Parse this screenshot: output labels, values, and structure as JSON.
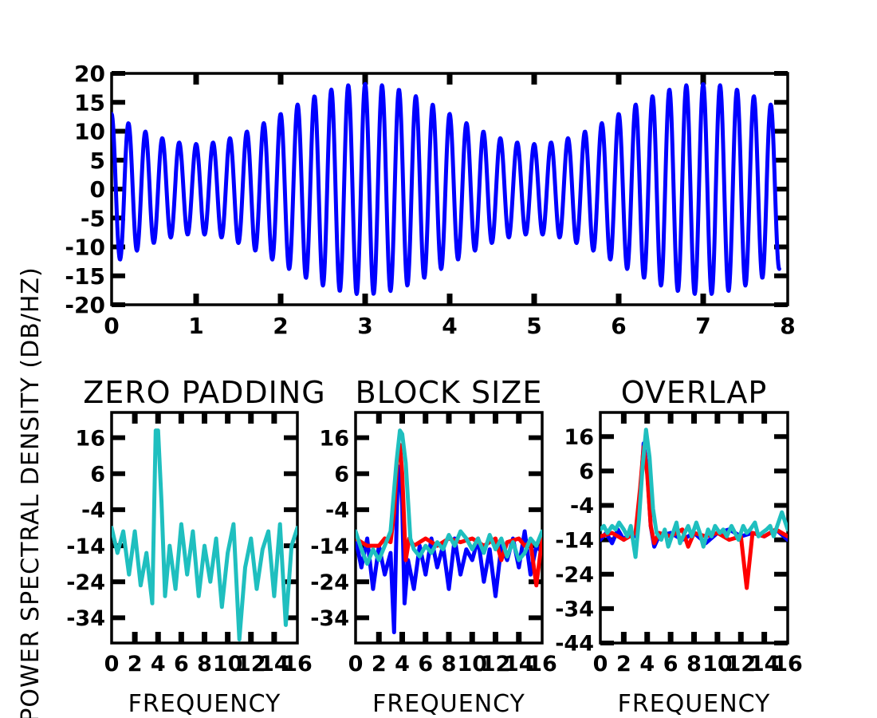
{
  "colors": {
    "blue": "#0000ff",
    "red": "#ff0000",
    "teal": "#1fbfbf",
    "axis": "#000000"
  },
  "ylabel": "POWER SPECTRAL DENSITY (DB/HZ)",
  "chart_data": [
    {
      "type": "line",
      "panel": "signal",
      "xlim": [
        0,
        8
      ],
      "ylim": [
        -20,
        20
      ],
      "x_ticks": [
        0,
        1,
        2,
        3,
        4,
        5,
        6,
        7,
        8
      ],
      "y_ticks": [
        20,
        15,
        10,
        5,
        0,
        -5,
        -10,
        -15,
        -20
      ],
      "series": [
        {
          "color": "blue",
          "signal": {
            "t_start": 0,
            "t_end": 7.9,
            "amplitude": 13,
            "modulation": 0.4,
            "cycles_per_unit": 5,
            "beat_period": 4
          }
        }
      ]
    },
    {
      "type": "line",
      "panel": "zero-padding",
      "title": "ZERO PADDING",
      "xlabel": "FREQUENCY",
      "xlim": [
        0,
        16
      ],
      "ylim": [
        -41,
        23
      ],
      "x_ticks": [
        "0",
        "2",
        "4",
        "6",
        "8",
        "10",
        "12",
        "14",
        "16"
      ],
      "y_ticks": [
        16,
        6,
        -4,
        -14,
        -24,
        -34
      ],
      "series": [
        {
          "color": "teal",
          "x": [
            0,
            0.5,
            1,
            1.5,
            2,
            2.5,
            3,
            3.5,
            3.8,
            4,
            4.3,
            4.6,
            5,
            5.5,
            6,
            6.5,
            7,
            7.5,
            8,
            8.5,
            9,
            9.5,
            10,
            10.5,
            11,
            11.5,
            12,
            12.5,
            13,
            13.5,
            14,
            14.5,
            15,
            15.5,
            16
          ],
          "y": [
            -9,
            -16,
            -10,
            -22,
            -10,
            -25,
            -16,
            -30,
            18,
            18,
            -2,
            -28,
            -14,
            -26,
            -8,
            -22,
            -10,
            -28,
            -14,
            -24,
            -12,
            -31,
            -16,
            -8,
            -40,
            -20,
            -12,
            -26,
            -15,
            -10,
            -28,
            -8,
            -36,
            -14,
            -9
          ]
        }
      ]
    },
    {
      "type": "line",
      "panel": "block-size",
      "title": "BLOCK SIZE",
      "xlabel": "FREQUENCY",
      "xlim": [
        0,
        16
      ],
      "ylim": [
        -41,
        23
      ],
      "x_ticks": [
        "0",
        "2",
        "4",
        "6",
        "8",
        "10",
        "12",
        "14",
        "16"
      ],
      "y_ticks": [
        16,
        6,
        -4,
        -14,
        -24,
        -34
      ],
      "series": [
        {
          "color": "blue",
          "x": [
            0,
            0.5,
            1,
            1.5,
            2,
            2.5,
            3,
            3.3,
            3.6,
            3.8,
            4,
            4.2,
            4.5,
            5,
            5.5,
            6,
            6.5,
            7,
            7.5,
            8,
            8.5,
            9,
            9.5,
            10,
            10.5,
            11,
            11.5,
            12,
            12.5,
            13,
            13.5,
            14,
            14.5,
            15,
            15.5,
            16
          ],
          "y": [
            -12,
            -20,
            -12,
            -26,
            -14,
            -22,
            -16,
            -38,
            3,
            8,
            -3,
            -30,
            -18,
            -26,
            -14,
            -22,
            -12,
            -20,
            -14,
            -26,
            -12,
            -22,
            -15,
            -18,
            -12,
            -24,
            -15,
            -28,
            -14,
            -18,
            -12,
            -20,
            -10,
            -22,
            -14,
            -16
          ]
        },
        {
          "color": "red",
          "x": [
            0,
            1,
            2,
            2.5,
            3,
            3.3,
            3.6,
            3.8,
            4,
            4.3,
            4.6,
            5,
            6,
            7,
            8,
            9,
            10,
            11,
            12,
            12.5,
            13,
            14,
            14.5,
            15,
            15.5,
            16
          ],
          "y": [
            -12,
            -14,
            -14,
            -12,
            -13,
            -5,
            11,
            14,
            6,
            -18,
            -12,
            -14,
            -12,
            -14,
            -12,
            -13,
            -12,
            -14,
            -12,
            -18,
            -13,
            -12,
            -14,
            -13,
            -25,
            -12
          ]
        },
        {
          "color": "teal",
          "x": [
            0,
            0.5,
            1,
            1.5,
            2,
            2.5,
            3,
            3.5,
            3.8,
            4,
            4.3,
            4.7,
            5,
            5.5,
            6,
            6.5,
            7,
            7.5,
            8,
            8.5,
            9,
            9.5,
            10,
            10.5,
            11,
            11.5,
            12,
            12.5,
            13,
            13.5,
            14,
            14.5,
            15,
            15.5,
            16
          ],
          "y": [
            -10,
            -15,
            -19,
            -15,
            -18,
            -14,
            -10,
            9,
            18,
            17,
            9,
            -12,
            -15,
            -17,
            -14,
            -16,
            -13,
            -15,
            -11,
            -14,
            -10,
            -12,
            -15,
            -12,
            -16,
            -11,
            -15,
            -12,
            -17,
            -13,
            -18,
            -16,
            -12,
            -14,
            -10
          ]
        }
      ]
    },
    {
      "type": "line",
      "panel": "overlap",
      "title": "OVERLAP",
      "xlabel": "FREQUENCY",
      "xlim": [
        0,
        16
      ],
      "ylim": [
        -44,
        23
      ],
      "x_ticks": [
        "0",
        "2",
        "4",
        "6",
        "8",
        "10",
        "12",
        "14",
        "16"
      ],
      "y_ticks": [
        16,
        6,
        -4,
        -14,
        -24,
        -34,
        -44
      ],
      "series": [
        {
          "color": "blue",
          "x": [
            0,
            0.5,
            1,
            1.5,
            2,
            2.5,
            3,
            3.4,
            3.7,
            4,
            4.3,
            4.6,
            5,
            6,
            7,
            8,
            9,
            10,
            11,
            12,
            13,
            14,
            15,
            16
          ],
          "y": [
            -14,
            -12,
            -15,
            -11,
            -14,
            -12,
            -13,
            -2,
            14,
            6,
            -10,
            -16,
            -13,
            -12,
            -14,
            -12,
            -15,
            -12,
            -11,
            -13,
            -12,
            -13,
            -11,
            -14
          ]
        },
        {
          "color": "red",
          "x": [
            0,
            1,
            2,
            3,
            3.4,
            3.7,
            4,
            4.3,
            4.6,
            5,
            6,
            7,
            7.5,
            8,
            9,
            10,
            11,
            12,
            12.5,
            13,
            14,
            15,
            16
          ],
          "y": [
            -13,
            -12,
            -14,
            -12,
            1,
            13,
            5,
            -10,
            -15,
            -12,
            -13,
            -11,
            -16,
            -12,
            -13,
            -12,
            -14,
            -13,
            -28,
            -12,
            -13,
            -11,
            -13
          ]
        },
        {
          "color": "teal",
          "x": [
            0,
            0.3,
            0.6,
            1,
            1.3,
            1.6,
            2,
            2.3,
            2.6,
            3,
            3.3,
            3.6,
            3.9,
            4.2,
            4.5,
            4.8,
            5.2,
            5.5,
            5.8,
            6.2,
            6.5,
            6.8,
            7.2,
            7.5,
            7.8,
            8.2,
            8.5,
            8.8,
            9.2,
            9.5,
            9.8,
            10.2,
            10.5,
            10.8,
            11.2,
            11.5,
            11.8,
            12.2,
            12.5,
            12.8,
            13.2,
            13.5,
            13.8,
            14.2,
            14.5,
            14.8,
            15.2,
            15.5,
            16
          ],
          "y": [
            -11,
            -10,
            -12,
            -10,
            -11,
            -9,
            -11,
            -13,
            -10,
            -19,
            -8,
            7,
            18,
            10,
            -5,
            -12,
            -14,
            -11,
            -16,
            -12,
            -9,
            -15,
            -12,
            -10,
            -13,
            -9,
            -12,
            -16,
            -11,
            -13,
            -10,
            -12,
            -11,
            -13,
            -10,
            -12,
            -14,
            -10,
            -12,
            -11,
            -9,
            -13,
            -12,
            -11,
            -10,
            -13,
            -9,
            -6,
            -11
          ]
        }
      ]
    }
  ]
}
